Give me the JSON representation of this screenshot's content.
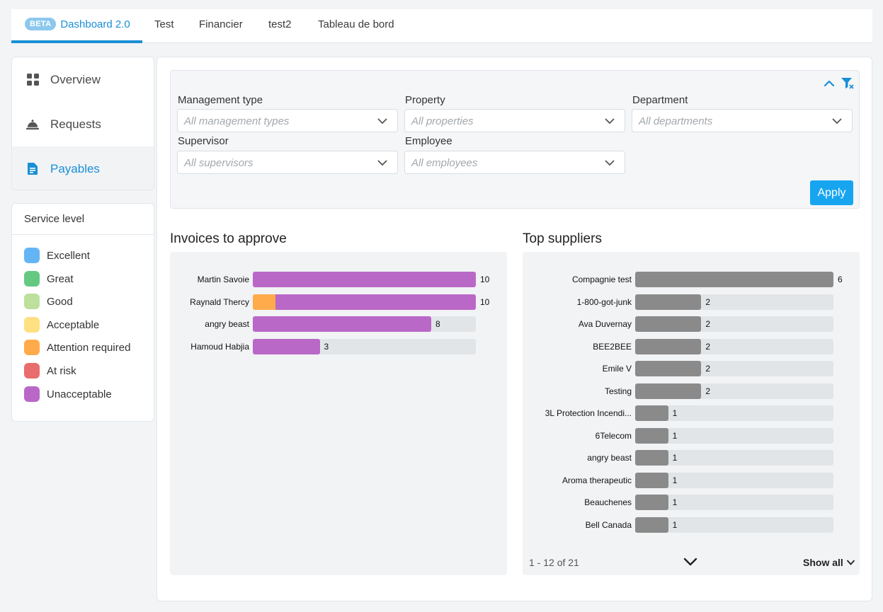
{
  "tabs": [
    {
      "badge": "BETA",
      "label": "Dashboard 2.0",
      "active": true
    },
    {
      "label": "Test"
    },
    {
      "label": "Financier"
    },
    {
      "label": "test2"
    },
    {
      "label": "Tableau de bord"
    }
  ],
  "nav": {
    "items": [
      {
        "label": "Overview",
        "icon": "grid-icon"
      },
      {
        "label": "Requests",
        "icon": "bell-icon"
      },
      {
        "label": "Payables",
        "icon": "document-icon",
        "active": true
      }
    ]
  },
  "service_level": {
    "title": "Service level",
    "items": [
      {
        "label": "Excellent",
        "color": "#64b5f6"
      },
      {
        "label": "Great",
        "color": "#66c982"
      },
      {
        "label": "Good",
        "color": "#bde09d"
      },
      {
        "label": "Acceptable",
        "color": "#ffe082"
      },
      {
        "label": "Attention required",
        "color": "#ffab4b"
      },
      {
        "label": "At risk",
        "color": "#e96d6d"
      },
      {
        "label": "Unacceptable",
        "color": "#ba68c8"
      }
    ]
  },
  "filters": {
    "management_type": {
      "label": "Management type",
      "placeholder": "All management types"
    },
    "property": {
      "label": "Property",
      "placeholder": "All properties"
    },
    "department": {
      "label": "Department",
      "placeholder": "All departments"
    },
    "supervisor": {
      "label": "Supervisor",
      "placeholder": "All supervisors"
    },
    "employee": {
      "label": "Employee",
      "placeholder": "All employees"
    },
    "apply_label": "Apply"
  },
  "invoices": {
    "title": "Invoices to approve"
  },
  "suppliers": {
    "title": "Top suppliers",
    "pager": "1 - 12 of 21",
    "show_all": "Show all"
  },
  "chart_data": [
    {
      "type": "bar",
      "title": "Invoices to approve",
      "orientation": "horizontal",
      "stacked": true,
      "max": 10,
      "categories": [
        "Martin Savoie",
        "Raynald Thercy",
        "angry beast",
        "Hamoud Habjia"
      ],
      "series": [
        {
          "name": "Attention required",
          "color": "#ffab4b",
          "values": [
            0,
            1,
            0,
            0
          ]
        },
        {
          "name": "Unacceptable",
          "color": "#ba68c8",
          "values": [
            10,
            9,
            8,
            3
          ]
        }
      ],
      "totals": [
        10,
        10,
        8,
        3
      ]
    },
    {
      "type": "bar",
      "title": "Top suppliers",
      "orientation": "horizontal",
      "max": 6,
      "color": "#8a8a8a",
      "categories": [
        "Compagnie test",
        "1-800-got-junk",
        "Ava Duvernay",
        "BEE2BEE",
        "Emile V",
        "Testing",
        "3L Protection Incendi...",
        "6Telecom",
        "angry beast",
        "Aroma therapeutic",
        "Beauchenes",
        "Bell Canada"
      ],
      "values": [
        6,
        2,
        2,
        2,
        2,
        2,
        1,
        1,
        1,
        1,
        1,
        1
      ]
    }
  ]
}
